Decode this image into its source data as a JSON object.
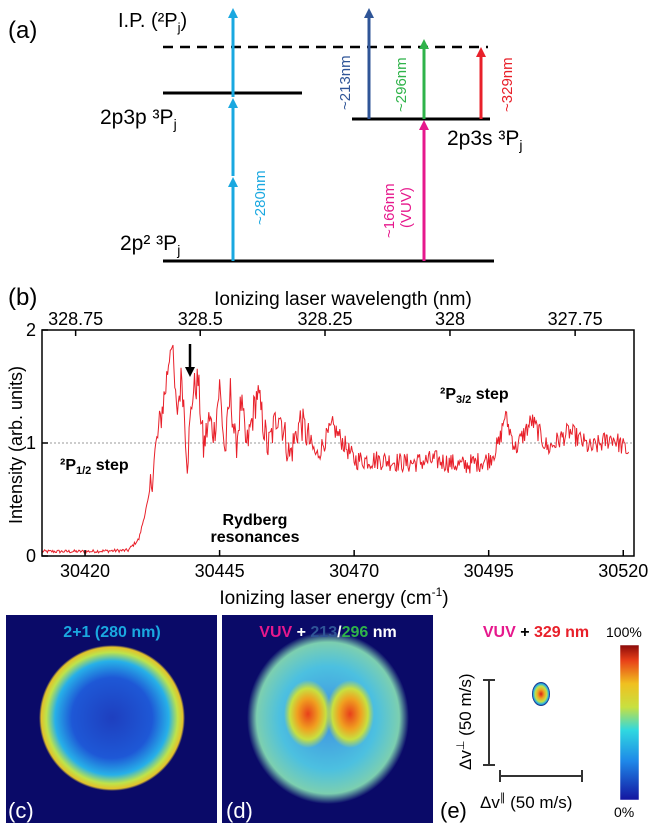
{
  "panel_a": {
    "label": "(a)",
    "levels": {
      "ip": "I.P. (²P",
      "ip_sub": "j",
      "ip_close": ")",
      "p3p": "2p3p ³P",
      "p3p_sub": "j",
      "p3s": "2p3s ³P",
      "p3s_sub": "j",
      "ground": "2p² ³P",
      "ground_sub": "j"
    },
    "wavelengths": {
      "w280": "~280nm",
      "w213": "~213nm",
      "w296": "~296nm",
      "w329": "~329nm",
      "w166": "~166nm",
      "vuv": "(VUV)"
    },
    "colors": {
      "c280": "#1aa8e0",
      "c213": "#2f5597",
      "c296": "#2fb34a",
      "c329": "#e8202a",
      "c166": "#e6188c"
    }
  },
  "panel_b": {
    "label": "(b)",
    "top_axis_title": "Ionizing laser wavelength (nm)",
    "bottom_axis_title": "Ionizing laser energy (cm",
    "bottom_axis_sup": "-1",
    "bottom_axis_close": ")",
    "y_axis_title": "Intensity (arb. units)",
    "annotations": {
      "p12_pre": "²P",
      "p12_sub": "1/2",
      "p12_post": " step",
      "p32_pre": "²P",
      "p32_sub": "3/2",
      "p32_post": " step",
      "rydberg1": "Rydberg",
      "rydberg2": "resonances"
    }
  },
  "chart_data": {
    "type": "line",
    "title": "",
    "xlabel": "Ionizing laser energy (cm-1)",
    "ylabel": "Intensity (arb. units)",
    "x2label": "Ionizing laser wavelength (nm)",
    "xlim": [
      30412,
      30522
    ],
    "ylim": [
      0,
      2
    ],
    "xticks": [
      "30420",
      "30445",
      "30470",
      "30495",
      "30520"
    ],
    "xtick_values": [
      30420,
      30445,
      30470,
      30495,
      30520
    ],
    "yticks": [
      "0",
      "1",
      "2"
    ],
    "ytick_values": [
      0,
      1,
      2
    ],
    "top_ticks": [
      "328.75",
      "328.5",
      "328.25",
      "328",
      "327.75"
    ],
    "top_tick_values": [
      328.75,
      328.5,
      328.25,
      328.0,
      327.75
    ],
    "reference_line_y": 1,
    "arrow_x": 30439.5,
    "series": [
      {
        "color": "#e8202a",
        "x": [
          30412,
          30420,
          30428,
          30430,
          30431,
          30432,
          30433,
          30434,
          30435,
          30436,
          30437,
          30438,
          30439,
          30440,
          30441,
          30442,
          30443,
          30444,
          30445,
          30446,
          30447,
          30448,
          30449,
          30450,
          30452,
          30454,
          30456,
          30458,
          30460,
          30463,
          30466,
          30470,
          30475,
          30480,
          30485,
          30490,
          30495,
          30497,
          30498,
          30500,
          30503,
          30506,
          30510,
          30514,
          30518,
          30521
        ],
        "y": [
          0.04,
          0.04,
          0.05,
          0.15,
          0.35,
          0.55,
          0.9,
          1.2,
          1.5,
          1.95,
          1.25,
          1.6,
          0.85,
          1.45,
          1.55,
          0.95,
          1.2,
          1.1,
          1.5,
          0.9,
          1.45,
          0.95,
          1.35,
          0.95,
          1.45,
          0.95,
          1.3,
          0.88,
          1.2,
          0.88,
          1.15,
          0.85,
          0.85,
          0.82,
          0.85,
          0.8,
          0.85,
          1.0,
          1.25,
          0.95,
          1.2,
          0.95,
          1.1,
          0.95,
          1.05,
          0.92
        ]
      }
    ]
  },
  "panel_c": {
    "label": "(c)",
    "title": "2+1 (280 nm)",
    "title_color": "#1aa8e0"
  },
  "panel_d": {
    "label": "(d)",
    "title_vuv": "VUV",
    "title_plus": " + ",
    "title_213": "213",
    "title_slash": "/",
    "title_296": "296",
    "title_nm": " nm"
  },
  "panel_e": {
    "label": "(e)",
    "title_vuv": "VUV",
    "title_plus": " + ",
    "title_329": "329 nm",
    "scale_vertical": "Δv",
    "scale_vertical_sup": "⊥",
    "scale_vertical_unit": " (50 m/s)",
    "scale_horizontal": "Δv",
    "scale_horizontal_sup": "∥",
    "scale_horizontal_unit": " (50 m/s)",
    "colorbar_max": "100%",
    "colorbar_min": "0%"
  }
}
